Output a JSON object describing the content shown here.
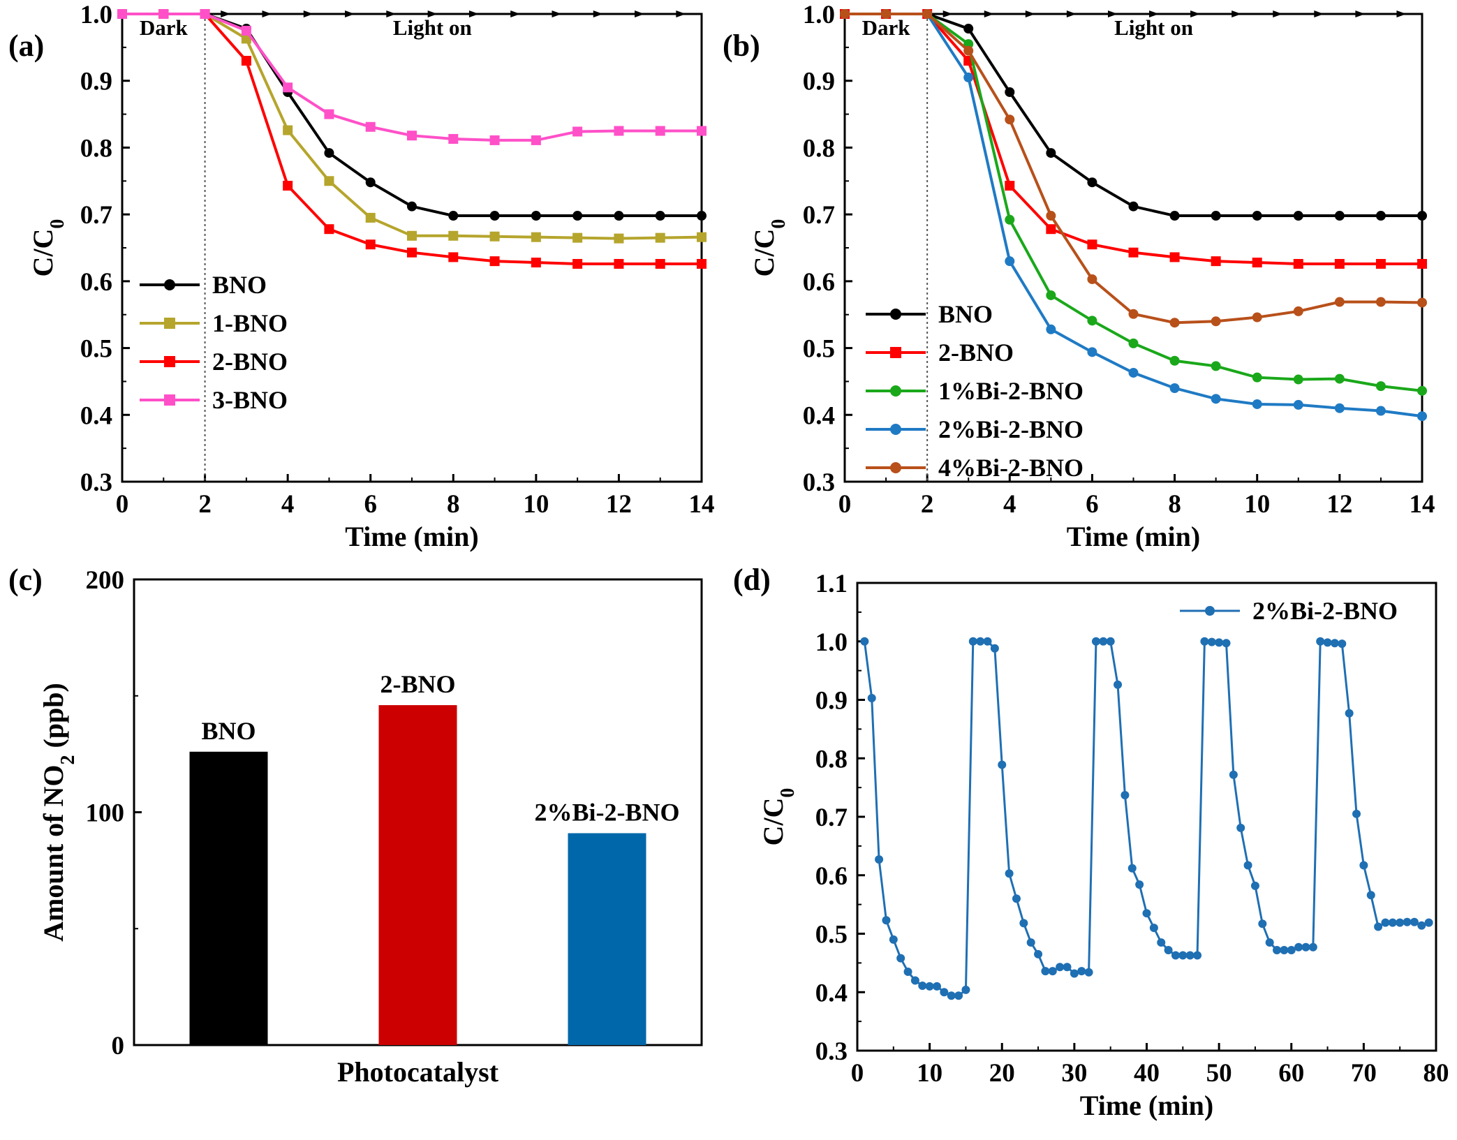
{
  "chart_data": [
    {
      "panel": "(a)",
      "type": "line",
      "xlabel": "Time (min)",
      "ylabel_main": "C/C",
      "ylabel_sub": "0",
      "xlim": [
        0,
        14
      ],
      "ylim": [
        0.3,
        1.0
      ],
      "xticks": [
        "0",
        "2",
        "4",
        "6",
        "8",
        "10",
        "12",
        "14"
      ],
      "yticks": [
        "0.3",
        "0.4",
        "0.5",
        "0.6",
        "0.7",
        "0.8",
        "0.9",
        "1.0"
      ],
      "annotations": {
        "dark": "Dark",
        "light": "Light on",
        "divider_x": 2
      },
      "legend_position": "center-left",
      "x": [
        0,
        1,
        2,
        3,
        4,
        5,
        6,
        7,
        8,
        9,
        10,
        11,
        12,
        13,
        14
      ],
      "series": [
        {
          "name": "BNO",
          "color": "#000000",
          "marker": "circle",
          "values": [
            1.0,
            1.0,
            1.0,
            0.978,
            0.883,
            0.792,
            0.748,
            0.712,
            0.698,
            0.698,
            0.698,
            0.698,
            0.698,
            0.698,
            0.698
          ]
        },
        {
          "name": "1-BNO",
          "color": "#b5a52c",
          "marker": "square",
          "values": [
            1.0,
            1.0,
            1.0,
            0.963,
            0.826,
            0.75,
            0.695,
            0.668,
            0.668,
            0.667,
            0.666,
            0.665,
            0.664,
            0.665,
            0.666
          ]
        },
        {
          "name": "2-BNO",
          "color": "#ff0000",
          "marker": "square",
          "values": [
            1.0,
            1.0,
            1.0,
            0.93,
            0.743,
            0.678,
            0.655,
            0.643,
            0.636,
            0.63,
            0.628,
            0.626,
            0.626,
            0.626,
            0.626
          ]
        },
        {
          "name": "3-BNO",
          "color": "#ff50c8",
          "marker": "square",
          "values": [
            1.0,
            1.0,
            1.0,
            0.975,
            0.89,
            0.85,
            0.831,
            0.818,
            0.813,
            0.811,
            0.811,
            0.824,
            0.825,
            0.825,
            0.825
          ]
        }
      ]
    },
    {
      "panel": "(b)",
      "type": "line",
      "xlabel": "Time (min)",
      "ylabel_main": "C/C",
      "ylabel_sub": "0",
      "xlim": [
        0,
        14
      ],
      "ylim": [
        0.3,
        1.0
      ],
      "xticks": [
        "0",
        "2",
        "4",
        "6",
        "8",
        "10",
        "12",
        "14"
      ],
      "yticks": [
        "0.3",
        "0.4",
        "0.5",
        "0.6",
        "0.7",
        "0.8",
        "0.9",
        "1.0"
      ],
      "annotations": {
        "dark": "Dark",
        "light": "Light on",
        "divider_x": 2
      },
      "legend_position": "lower-left",
      "x": [
        0,
        1,
        2,
        3,
        4,
        5,
        6,
        7,
        8,
        9,
        10,
        11,
        12,
        13,
        14
      ],
      "series": [
        {
          "name": "BNO",
          "color": "#000000",
          "marker": "circle",
          "values": [
            1.0,
            1.0,
            1.0,
            0.978,
            0.883,
            0.792,
            0.748,
            0.712,
            0.698,
            0.698,
            0.698,
            0.698,
            0.698,
            0.698,
            0.698
          ]
        },
        {
          "name": "2-BNO",
          "color": "#ff0000",
          "marker": "square",
          "values": [
            1.0,
            1.0,
            1.0,
            0.93,
            0.743,
            0.678,
            0.655,
            0.643,
            0.636,
            0.63,
            0.628,
            0.626,
            0.626,
            0.626,
            0.626
          ]
        },
        {
          "name": "1%Bi-2-BNO",
          "color": "#1aa81a",
          "marker": "circle",
          "values": [
            1.0,
            1.0,
            1.0,
            0.955,
            0.692,
            0.579,
            0.541,
            0.507,
            0.481,
            0.473,
            0.456,
            0.453,
            0.454,
            0.443,
            0.436
          ]
        },
        {
          "name": "2%Bi-2-BNO",
          "color": "#1f7ac4",
          "marker": "circle",
          "values": [
            1.0,
            1.0,
            1.0,
            0.905,
            0.63,
            0.528,
            0.494,
            0.463,
            0.44,
            0.424,
            0.416,
            0.415,
            0.41,
            0.406,
            0.398
          ]
        },
        {
          "name": "4%Bi-2-BNO",
          "color": "#b8501a",
          "marker": "circle",
          "values": [
            1.0,
            1.0,
            1.0,
            0.945,
            0.842,
            0.698,
            0.603,
            0.551,
            0.538,
            0.54,
            0.546,
            0.555,
            0.569,
            0.569,
            0.568
          ]
        }
      ]
    },
    {
      "panel": "(c)",
      "type": "bar",
      "xlabel": "Photocatalyst",
      "ylabel_main": "Amount of NO",
      "ylabel_sub": "2",
      "ylabel_tail": " (ppb)",
      "ylim": [
        0,
        200
      ],
      "yticks": [
        "0",
        "100",
        "200"
      ],
      "categories": [
        "BNO",
        "2-BNO",
        "2%Bi-2-BNO"
      ],
      "values": [
        126,
        146,
        91
      ],
      "colors": [
        "#000000",
        "#cc0000",
        "#0068aa"
      ]
    },
    {
      "panel": "(d)",
      "type": "line",
      "xlabel": "Time (min)",
      "ylabel_main": "C/C",
      "ylabel_sub": "0",
      "xlim": [
        0,
        80
      ],
      "ylim": [
        0.3,
        1.1
      ],
      "xticks": [
        "0",
        "10",
        "20",
        "30",
        "40",
        "50",
        "60",
        "70",
        "80"
      ],
      "yticks": [
        "0.3",
        "0.4",
        "0.5",
        "0.6",
        "0.7",
        "0.8",
        "0.9",
        "1.0",
        "1.1"
      ],
      "legend_position": "top-right",
      "series": [
        {
          "name": "2%Bi-2-BNO",
          "color": "#1f6fb3",
          "marker": "circle",
          "x": [
            1,
            2,
            3,
            4,
            5,
            6,
            7,
            8,
            9,
            10,
            11,
            12,
            13,
            14,
            15,
            16,
            17,
            18,
            19,
            20,
            21,
            22,
            23,
            24,
            25,
            26,
            27,
            28,
            29,
            30,
            31,
            32,
            33,
            34,
            35,
            36,
            37,
            38,
            39,
            40,
            41,
            42,
            43,
            44,
            45,
            46,
            47,
            48,
            49,
            50,
            51,
            52,
            53,
            54,
            55,
            56,
            57,
            58,
            59,
            60,
            61,
            62,
            63,
            64,
            65,
            66,
            67,
            68,
            69,
            70,
            71,
            72,
            73,
            74,
            75,
            76,
            77,
            78,
            79
          ],
          "y": [
            1.0,
            0.903,
            0.627,
            0.523,
            0.49,
            0.458,
            0.435,
            0.42,
            0.411,
            0.41,
            0.41,
            0.4,
            0.394,
            0.394,
            0.404,
            1.0,
            1.0,
            1.0,
            0.988,
            0.789,
            0.603,
            0.56,
            0.518,
            0.485,
            0.465,
            0.436,
            0.436,
            0.443,
            0.443,
            0.432,
            0.436,
            0.434,
            1.0,
            1.0,
            1.0,
            0.926,
            0.737,
            0.612,
            0.584,
            0.535,
            0.51,
            0.485,
            0.472,
            0.463,
            0.463,
            0.463,
            0.463,
            1.0,
            0.999,
            0.998,
            0.997,
            0.772,
            0.681,
            0.617,
            0.582,
            0.517,
            0.485,
            0.472,
            0.472,
            0.472,
            0.477,
            0.477,
            0.477,
            1.0,
            0.998,
            0.997,
            0.996,
            0.877,
            0.705,
            0.617,
            0.566,
            0.512,
            0.519,
            0.519,
            0.519,
            0.52,
            0.52,
            0.514,
            0.519
          ]
        }
      ]
    }
  ]
}
